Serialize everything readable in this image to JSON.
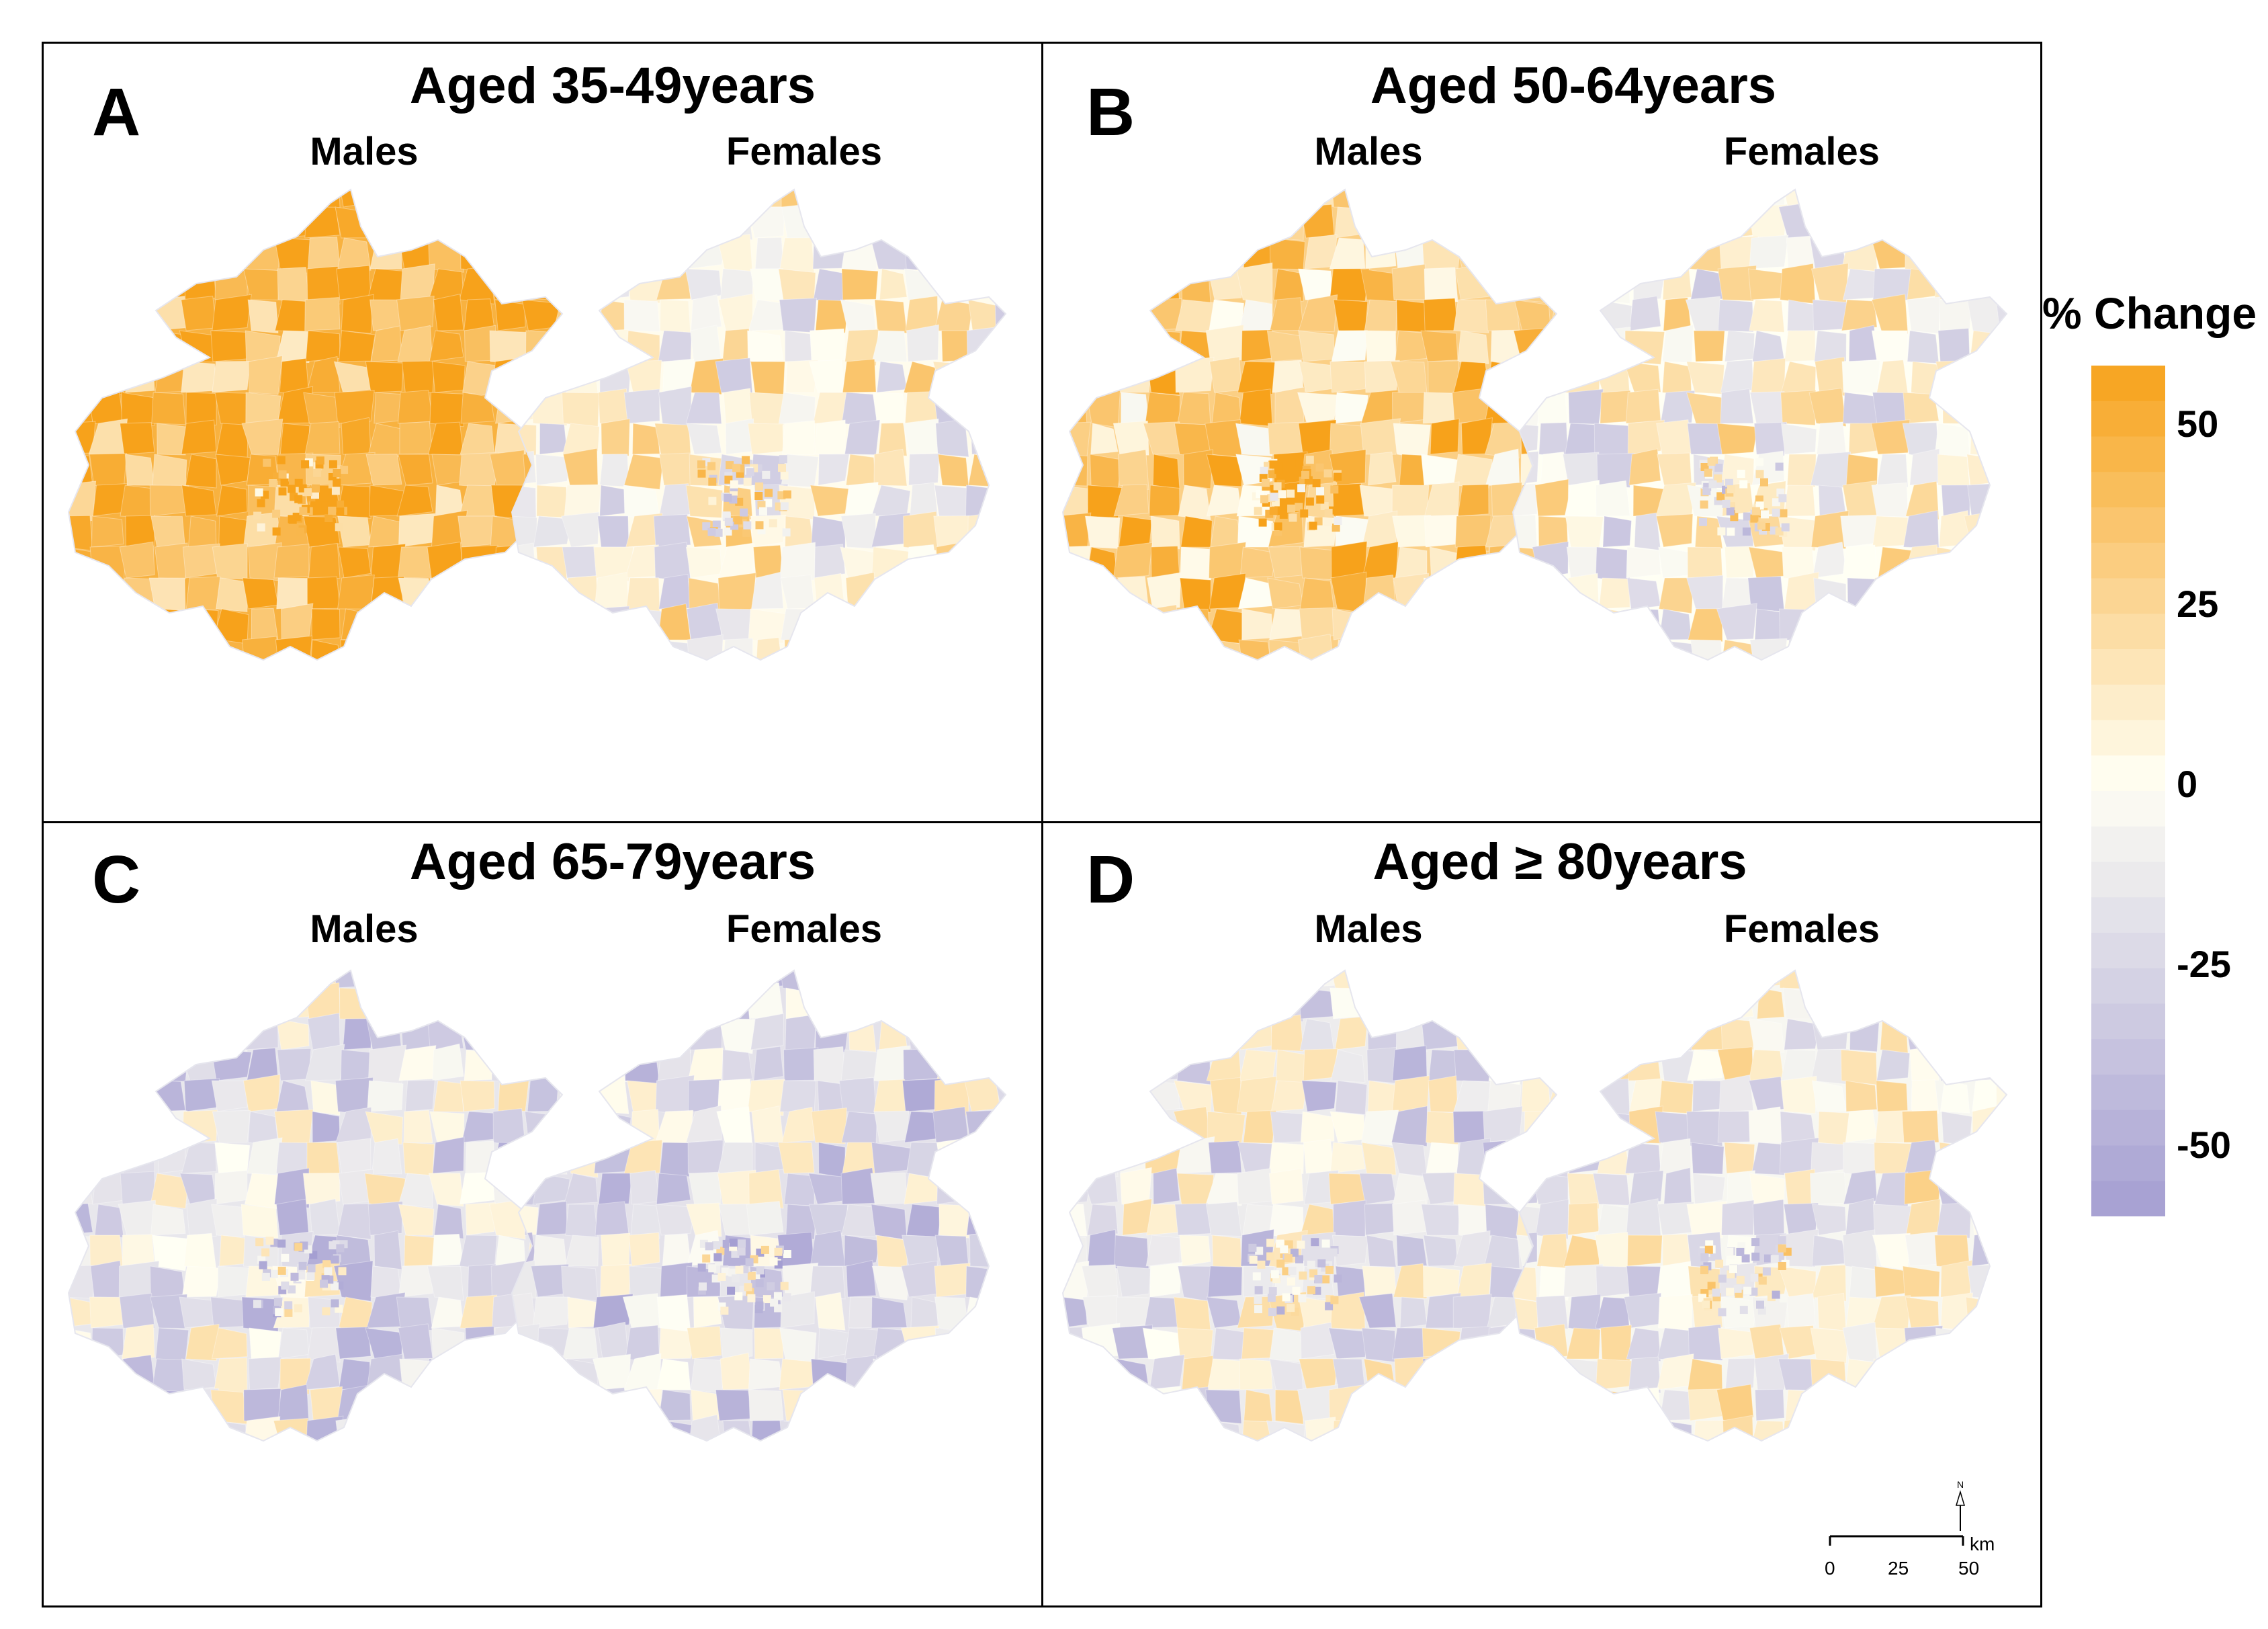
{
  "figure": {
    "panels": [
      {
        "letter": "A",
        "title": "Aged 35-49years",
        "males_label": "Males",
        "females_label": "Females",
        "males_change_pct": 48,
        "females_change_pct": 2
      },
      {
        "letter": "B",
        "title": "Aged 50-64years",
        "males_label": "Males",
        "females_label": "Females",
        "males_change_pct": 30,
        "females_change_pct": 0
      },
      {
        "letter": "C",
        "title": "Aged 65-79years",
        "males_label": "Males",
        "females_label": "Females",
        "males_change_pct": -15,
        "females_change_pct": -18
      },
      {
        "letter": "D",
        "title": "Aged ≥ 80years",
        "males_label": "Males",
        "females_label": "Females",
        "males_change_pct": -12,
        "females_change_pct": -5
      }
    ]
  },
  "legend": {
    "title": "% Change",
    "min": -60,
    "max": 58,
    "ticks": [
      {
        "value": 50,
        "label": "50"
      },
      {
        "value": 25,
        "label": "25"
      },
      {
        "value": 0,
        "label": "0"
      },
      {
        "value": -25,
        "label": "-25"
      },
      {
        "value": -50,
        "label": "-50"
      }
    ],
    "colors": {
      "high": "#F7A21B",
      "mid": "#FFFFF4",
      "low": "#A49ED2"
    }
  },
  "scale": {
    "ticks": [
      "0",
      "25",
      "50"
    ],
    "unit": "km",
    "north": "N"
  }
}
